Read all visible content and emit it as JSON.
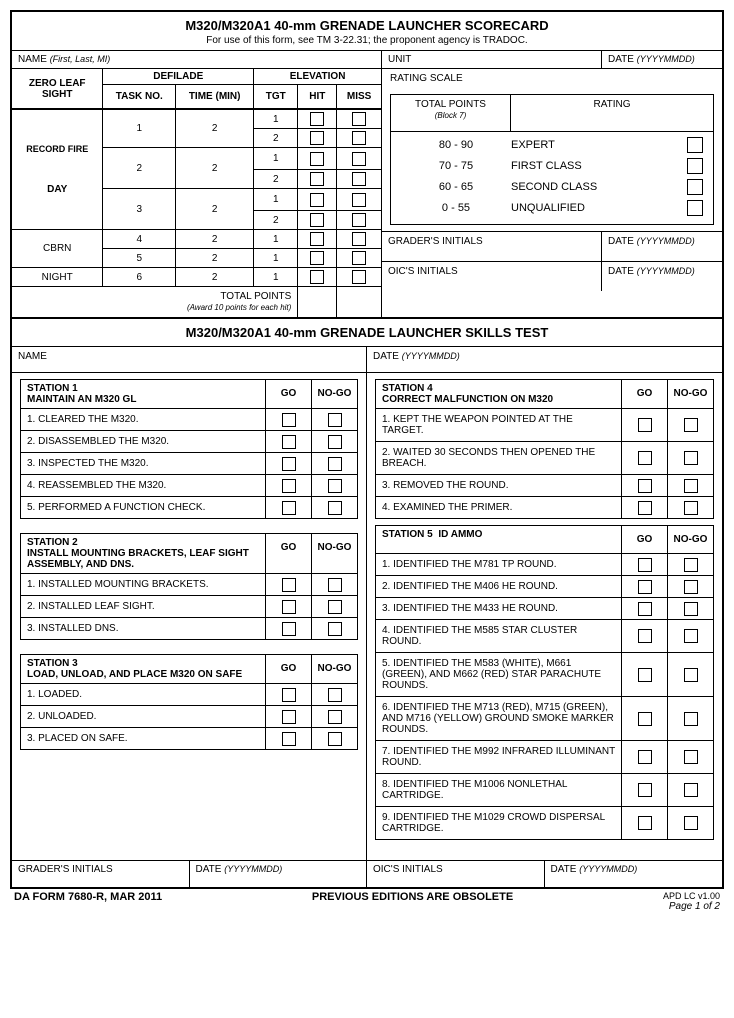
{
  "header": {
    "title": "M320/M320A1 40-mm GRENADE LAUNCHER SCORECARD",
    "subtitle": "For use of this form, see TM 3-22.31; the proponent agency is TRADOC."
  },
  "top": {
    "name_label": "NAME",
    "name_hint": "(First, Last, MI)",
    "unit_label": "UNIT",
    "date_label": "DATE",
    "date_hint": "(YYYYMMDD)"
  },
  "record_fire": {
    "zero_leaf": "ZERO LEAF SIGHT",
    "defilade": "DEFILADE",
    "elevation": "ELEVATION",
    "record_fire": "RECORD FIRE",
    "task_no": "TASK NO.",
    "time_min": "TIME (MIN)",
    "tgt": "TGT",
    "hit": "HIT",
    "miss": "MISS",
    "day": "DAY",
    "cbrn": "CBRN",
    "night": "NIGHT",
    "total_points": "TOTAL POINTS",
    "award_note": "(Award 10 points for each hit)",
    "rows": [
      {
        "task": "1",
        "time": "2",
        "tgts": [
          "1",
          "2"
        ]
      },
      {
        "task": "2",
        "time": "2",
        "tgts": [
          "1",
          "2"
        ]
      },
      {
        "task": "3",
        "time": "2",
        "tgts": [
          "1",
          "2"
        ]
      },
      {
        "task": "4",
        "time": "2",
        "tgts": [
          "1"
        ]
      },
      {
        "task": "5",
        "time": "2",
        "tgts": [
          "1"
        ]
      },
      {
        "task": "6",
        "time": "2",
        "tgts": [
          "1"
        ]
      }
    ]
  },
  "rating": {
    "scale_label": "RATING SCALE",
    "total_points": "TOTAL POINTS",
    "block7": "(Block 7)",
    "rating_label": "RATING",
    "rows": [
      {
        "pts": "80 - 90",
        "name": "EXPERT"
      },
      {
        "pts": "70 - 75",
        "name": "FIRST CLASS"
      },
      {
        "pts": "60 - 65",
        "name": "SECOND CLASS"
      },
      {
        "pts": "0 - 55",
        "name": "UNQUALIFIED"
      }
    ]
  },
  "signoff": {
    "grader": "GRADER'S INITIALS",
    "oic": "OIC'S INITIALS",
    "date": "DATE",
    "date_hint": "(YYYYMMDD)"
  },
  "skills": {
    "title": "M320/M320A1 40-mm GRENADE LAUNCHER SKILLS TEST",
    "name_label": "NAME",
    "date_label": "DATE",
    "date_hint": "(YYYYMMDD)",
    "go": "GO",
    "nogo": "NO-GO",
    "stations_left": [
      {
        "id": "STATION 1",
        "name": "MAINTAIN AN M320 GL",
        "items": [
          "1. CLEARED THE M320.",
          "2. DISASSEMBLED THE M320.",
          "3. INSPECTED THE M320.",
          "4. REASSEMBLED THE M320.",
          "5. PERFORMED A FUNCTION CHECK."
        ]
      },
      {
        "id": "STATION 2",
        "name": "INSTALL MOUNTING BRACKETS, LEAF SIGHT ASSEMBLY, AND DNS.",
        "items": [
          "1. INSTALLED MOUNTING BRACKETS.",
          "2. INSTALLED LEAF SIGHT.",
          "3. INSTALLED DNS."
        ]
      },
      {
        "id": "STATION 3",
        "name": "LOAD, UNLOAD, AND PLACE M320 ON SAFE",
        "items": [
          "1. LOADED.",
          "2. UNLOADED.",
          "3. PLACED ON SAFE."
        ]
      }
    ],
    "stations_right": [
      {
        "id": "STATION 4",
        "name": "CORRECT MALFUNCTION ON M320",
        "items": [
          "1. KEPT THE WEAPON POINTED AT THE TARGET.",
          "2. WAITED 30 SECONDS THEN OPENED THE BREACH.",
          "3. REMOVED THE ROUND.",
          "4. EXAMINED THE PRIMER."
        ]
      },
      {
        "id": "STATION 5",
        "name": "ID AMMO",
        "items": [
          "1. IDENTIFIED THE M781 TP ROUND.",
          "2. IDENTIFIED THE M406 HE ROUND.",
          "3. IDENTIFIED THE M433 HE ROUND.",
          "4. IDENTIFIED THE M585 STAR CLUSTER ROUND.",
          "5. IDENTIFIED THE M583 (WHITE), M661 (GREEN), AND M662 (RED) STAR PARACHUTE ROUNDS.",
          "6. IDENTIFIED THE M713 (RED), M715 (GREEN), AND M716 (YELLOW) GROUND SMOKE MARKER ROUNDS.",
          "7. IDENTIFIED THE M992 INFRARED ILLUMINANT ROUND.",
          "8. IDENTIFIED THE M1006 NONLETHAL CARTRIDGE.",
          "9. IDENTIFIED THE M1029 CROWD DISPERSAL CARTRIDGE."
        ]
      }
    ]
  },
  "footer": {
    "form_id": "DA FORM 7680-R, MAR 2011",
    "obsolete": "PREVIOUS EDITIONS ARE OBSOLETE",
    "apd": "APD LC v1.00",
    "page": "Page 1 of 2"
  }
}
